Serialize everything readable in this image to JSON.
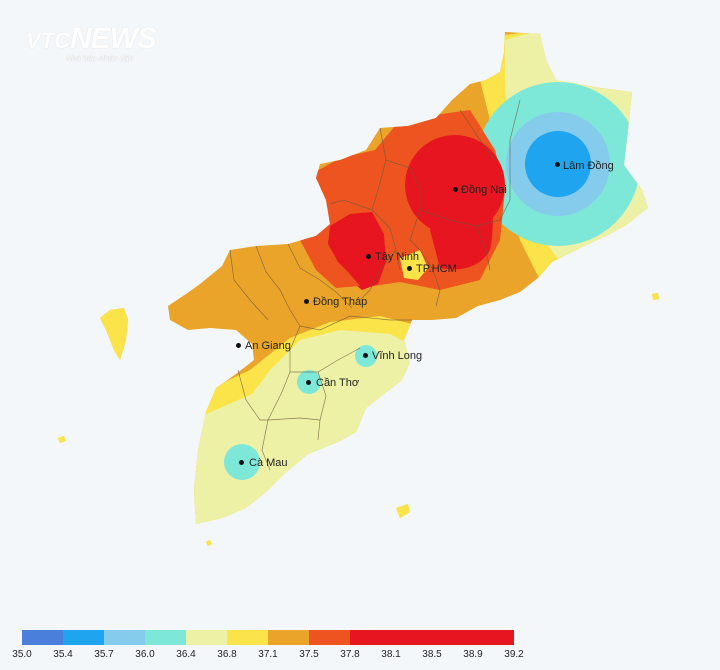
{
  "watermark": {
    "brand_prefix": "VTC",
    "brand_name": "NEWS",
    "subtitle": "Nhà báo Nhân dân"
  },
  "map": {
    "cities": [
      {
        "id": "lam-dong",
        "name": "Lâm Đồng"
      },
      {
        "id": "dong-nai",
        "name": "Đồng Nai"
      },
      {
        "id": "tay-ninh",
        "name": "Tây Ninh"
      },
      {
        "id": "tp-hcm",
        "name": "TP.HCM"
      },
      {
        "id": "dong-thap",
        "name": "Đồng Tháp"
      },
      {
        "id": "an-giang",
        "name": "An Giang"
      },
      {
        "id": "vinh-long",
        "name": "Vĩnh Long"
      },
      {
        "id": "can-tho",
        "name": "Cần Thơ"
      },
      {
        "id": "ca-mau",
        "name": "Cà Mau"
      }
    ],
    "colors": {
      "background": "#f4f7f9",
      "border": "#6b5a3a"
    }
  },
  "legend": {
    "colors": [
      "#4a7fdc",
      "#1fa5f0",
      "#85ccec",
      "#7de8d8",
      "#ecf1a6",
      "#fbe34a",
      "#eaa42a",
      "#ed5420",
      "#e7151f",
      "#e7151f",
      "#e7151f",
      "#e7151f"
    ],
    "labels": [
      "35.0",
      "35.4",
      "35.7",
      "36.0",
      "36.4",
      "36.8",
      "37.1",
      "37.5",
      "37.8",
      "38.1",
      "38.5",
      "38.9",
      "39.2"
    ]
  }
}
